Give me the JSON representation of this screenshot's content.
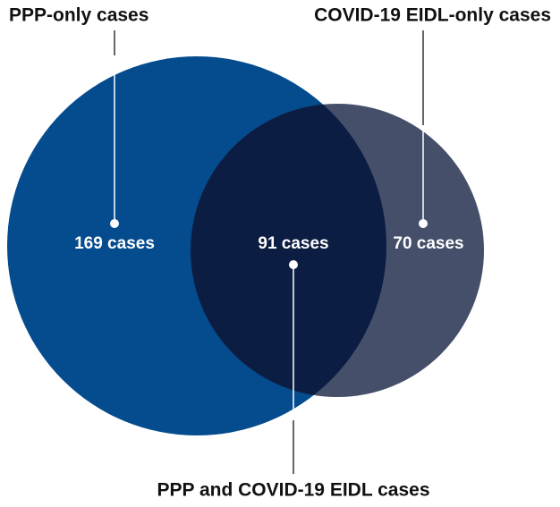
{
  "sets": [
    {
      "label": "PPP-only cases",
      "count": "169 cases"
    },
    {
      "label": "COVID-19 EIDL-only cases",
      "count": "70 cases"
    }
  ],
  "intersection": {
    "label": "PPP and COVID-19 EIDL cases",
    "count": "91 cases"
  }
}
